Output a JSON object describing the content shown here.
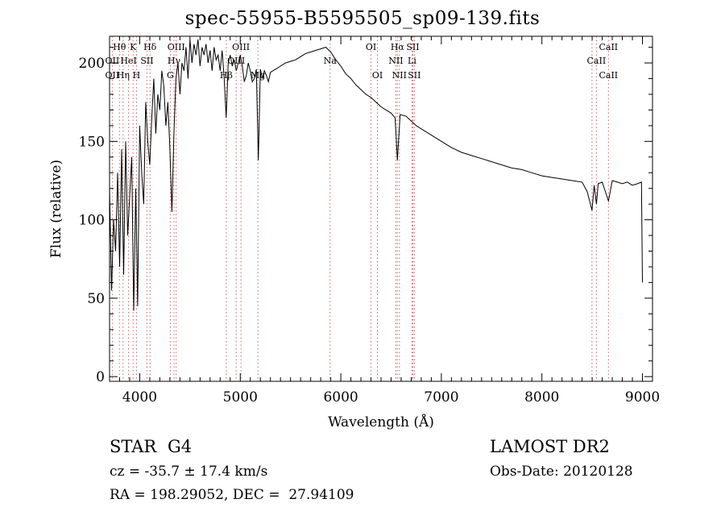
{
  "chart_data": {
    "type": "line",
    "title": "spec-55955-B5595505_sp09-139.fits",
    "xlabel": "Wavelength (Å)",
    "ylabel": "Flux (relative)",
    "xlim": [
      3700,
      9100
    ],
    "ylim": [
      -3,
      217
    ],
    "x_ticks": [
      4000,
      5000,
      6000,
      7000,
      8000,
      9000
    ],
    "y_ticks": [
      0,
      50,
      100,
      150,
      200
    ],
    "grid": false,
    "series": [
      {
        "x": [
          3700,
          3720,
          3740,
          3760,
          3780,
          3800,
          3820,
          3840,
          3860,
          3880,
          3900,
          3920,
          3940,
          3960,
          3980,
          4000,
          4020,
          4040,
          4060,
          4080,
          4100,
          4120,
          4140,
          4160,
          4180,
          4200,
          4220,
          4240,
          4260,
          4280,
          4300,
          4320,
          4340,
          4360,
          4380,
          4400,
          4420,
          4440,
          4460,
          4480,
          4500,
          4520,
          4540,
          4560,
          4580,
          4600,
          4620,
          4640,
          4660,
          4680,
          4700,
          4720,
          4740,
          4760,
          4780,
          4800,
          4820,
          4840,
          4860,
          4880,
          4900,
          4920,
          4940,
          4960,
          4980,
          5000,
          5020,
          5040,
          5060,
          5080,
          5100,
          5120,
          5140,
          5160,
          5180,
          5200,
          5220,
          5240,
          5260,
          5280,
          5300,
          5350,
          5400,
          5450,
          5500,
          5550,
          5600,
          5650,
          5700,
          5750,
          5800,
          5850,
          5900,
          5950,
          6000,
          6050,
          6100,
          6150,
          6200,
          6250,
          6300,
          6350,
          6400,
          6450,
          6500,
          6540,
          6563,
          6590,
          6650,
          6700,
          6750,
          6800,
          6900,
          7000,
          7100,
          7200,
          7300,
          7400,
          7500,
          7600,
          7700,
          7800,
          7900,
          8000,
          8100,
          8200,
          8300,
          8400,
          8450,
          8498,
          8520,
          8542,
          8560,
          8600,
          8662,
          8700,
          8750,
          8800,
          8850,
          8900,
          8950,
          8990,
          9000
        ],
        "values": [
          120,
          55,
          100,
          80,
          130,
          70,
          145,
          65,
          150,
          90,
          115,
          140,
          42,
          120,
          45,
          160,
          130,
          110,
          175,
          150,
          135,
          165,
          190,
          155,
          180,
          170,
          195,
          185,
          160,
          175,
          145,
          105,
          155,
          190,
          200,
          180,
          200,
          195,
          210,
          190,
          215,
          200,
          212,
          205,
          215,
          198,
          210,
          205,
          212,
          200,
          208,
          195,
          210,
          202,
          205,
          195,
          208,
          190,
          165,
          200,
          205,
          198,
          202,
          195,
          200,
          205,
          198,
          188,
          192,
          200,
          195,
          188,
          190,
          196,
          138,
          196,
          190,
          195,
          192,
          188,
          194,
          196,
          198,
          200,
          201,
          202,
          204,
          206,
          207,
          208,
          209,
          210,
          207,
          202,
          198,
          193,
          190,
          186,
          183,
          180,
          178,
          175,
          172,
          170,
          168,
          165,
          138,
          167,
          166,
          163,
          160,
          158,
          154,
          150,
          146,
          143,
          141,
          139,
          137,
          135,
          133,
          132,
          130,
          128,
          127,
          126,
          125,
          124,
          118,
          106,
          122,
          110,
          123,
          124,
          112,
          125,
          124,
          123,
          124,
          122,
          123,
          124,
          60
        ]
      }
    ],
    "lines": [
      {
        "label": "Hθ",
        "x": 3798,
        "row": 1
      },
      {
        "label": "OII",
        "x": 3727,
        "row": 2
      },
      {
        "label": "OII",
        "x": 3727,
        "row": 3
      },
      {
        "label": "Hη",
        "x": 3835,
        "row": 3
      },
      {
        "label": "K",
        "x": 3934,
        "row": 1
      },
      {
        "label": "HeI",
        "x": 3889,
        "row": 2
      },
      {
        "label": "SII",
        "x": 4072,
        "row": 2
      },
      {
        "label": "H",
        "x": 3968,
        "row": 3
      },
      {
        "label": "Hδ",
        "x": 4102,
        "row": 1
      },
      {
        "label": "OIII",
        "x": 4363,
        "row": 1
      },
      {
        "label": "Hγ",
        "x": 4341,
        "row": 2
      },
      {
        "label": "G",
        "x": 4304,
        "row": 3
      },
      {
        "label": "OIII",
        "x": 5007,
        "row": 1
      },
      {
        "label": "OIII",
        "x": 4959,
        "row": 2
      },
      {
        "label": "Hβ",
        "x": 4861,
        "row": 3
      },
      {
        "label": "Mg",
        "x": 5175,
        "row": 3
      },
      {
        "label": "Na",
        "x": 5893,
        "row": 2
      },
      {
        "label": "OI",
        "x": 6300,
        "row": 1
      },
      {
        "label": "OI",
        "x": 6364,
        "row": 3
      },
      {
        "label": "Hα",
        "x": 6563,
        "row": 1
      },
      {
        "label": "NII",
        "x": 6548,
        "row": 2
      },
      {
        "label": "NII",
        "x": 6583,
        "row": 3
      },
      {
        "label": "SII",
        "x": 6716,
        "row": 1
      },
      {
        "label": "Li",
        "x": 6708,
        "row": 2
      },
      {
        "label": "SII",
        "x": 6731,
        "row": 3
      },
      {
        "label": "CaII",
        "x": 8662,
        "row": 1
      },
      {
        "label": "CaII",
        "x": 8542,
        "row": 2
      },
      {
        "label": "CaII",
        "x": 8662,
        "row": 3
      }
    ],
    "line_marker_x": [
      3727,
      3798,
      3835,
      3889,
      3934,
      3968,
      4072,
      4102,
      4304,
      4341,
      4363,
      4861,
      4959,
      5007,
      5175,
      5893,
      6300,
      6364,
      6548,
      6563,
      6583,
      6708,
      6716,
      6731,
      8498,
      8542,
      8662
    ]
  },
  "info": {
    "object_class": "STAR",
    "subclass": "G4",
    "survey": "LAMOST DR2",
    "cz": "cz = -35.7 ± 17.4 km/s",
    "obs_date": "Obs-Date: 20120128",
    "coords": "RA = 198.29052, DEC =  27.94109"
  }
}
